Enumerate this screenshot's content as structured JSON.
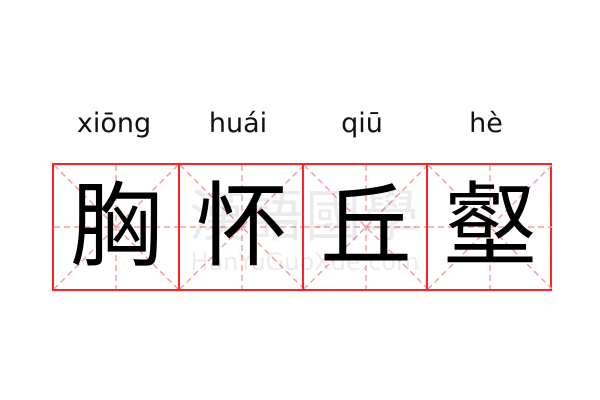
{
  "idiom": {
    "pinyin": [
      "xiōng",
      "huái",
      "qiū",
      "hè"
    ],
    "characters": [
      "胸",
      "怀",
      "丘",
      "壑"
    ]
  },
  "watermark": {
    "chinese": "漢語國學",
    "latin": "HanYuGuoXue.com"
  },
  "colors": {
    "grid_border": "#ff2222",
    "guide_lines": "#f5a0a0",
    "text": "#000000"
  }
}
